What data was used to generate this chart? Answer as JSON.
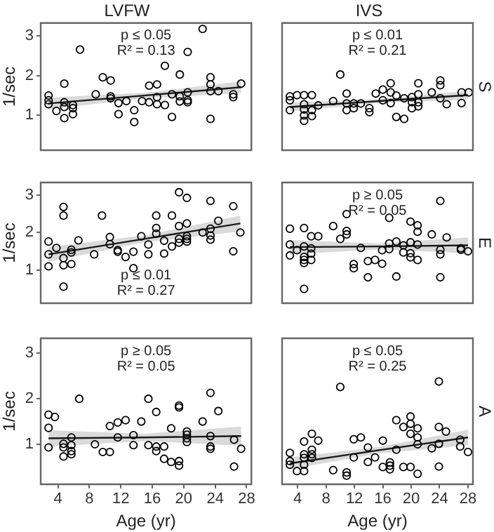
{
  "chart_data": [
    {
      "type": "scatter",
      "title": "LVFW",
      "ylabel": "1/sec",
      "annotations": [
        "p ≤ 0.05",
        "R² = 0.13"
      ],
      "xlim": [
        1.8,
        28.6
      ],
      "ylim": [
        0.12,
        3.33
      ],
      "xticks": [
        4,
        8,
        12,
        16,
        20,
        24,
        28
      ],
      "yticks": [
        1,
        2,
        3
      ],
      "tick_labels": "y",
      "legend": false,
      "series": [
        {
          "type": "scatter",
          "marker": "circle",
          "color": "#000000",
          "x": [
            2.8,
            2.8,
            2.8,
            3.8,
            4.8,
            4.8,
            4.8,
            4.8,
            5.9,
            5.9,
            5.9,
            6.8,
            8.8,
            9.7,
            10.7,
            10.7,
            10.7,
            11.7,
            11.7,
            12.7,
            13.7,
            13.7,
            14.7,
            15.6,
            15.6,
            16.6,
            16.6,
            16.6,
            17.6,
            17.6,
            18.5,
            18.5,
            19.5,
            19.5,
            19.5,
            20.5,
            20.5,
            20.5,
            20.5,
            22.4,
            23.4,
            23.4,
            23.4,
            23.4,
            24.4,
            26.3,
            26.3,
            27.3
          ],
          "values": [
            1.5,
            1.38,
            1.28,
            1.11,
            1.8,
            1.33,
            1.21,
            0.93,
            1.26,
            1.18,
            1.03,
            2.66,
            1.53,
            1.96,
            1.88,
            1.48,
            1.43,
            1.31,
            1.03,
            1.36,
            1.13,
            0.83,
            1.36,
            1.75,
            1.33,
            1.78,
            1.46,
            1.28,
            2.25,
            1.26,
            1.53,
            0.96,
            2.03,
            1.48,
            1.35,
            2.6,
            1.58,
            1.38,
            1.33,
            3.18,
            1.96,
            1.78,
            1.61,
            0.91,
            1.61,
            1.53,
            1.46,
            1.8
          ]
        },
        {
          "type": "line",
          "color": "#1a1a1a",
          "x": [
            2.8,
            15,
            27.3
          ],
          "values": [
            1.3,
            1.5,
            1.71
          ],
          "lower": [
            1.15,
            1.43,
            1.56
          ],
          "upper": [
            1.45,
            1.57,
            1.86
          ]
        }
      ]
    },
    {
      "type": "scatter",
      "title": "IVS",
      "y2label": "S",
      "annotations": [
        "p ≤ 0.01",
        "R² = 0.21"
      ],
      "xlim": [
        1.8,
        28.7
      ],
      "ylim": [
        0.12,
        3.33
      ],
      "xticks": [
        4,
        8,
        12,
        16,
        20,
        24,
        28
      ],
      "yticks": [
        1,
        2,
        3
      ],
      "tick_labels": false,
      "legend": false,
      "series": [
        {
          "type": "scatter",
          "marker": "circle",
          "color": "#000000",
          "x": [
            2.9,
            2.9,
            2.9,
            3.9,
            4.9,
            4.9,
            4.9,
            4.9,
            4.9,
            6.0,
            6.0,
            6.0,
            6.9,
            9.0,
            10.0,
            10.9,
            10.9,
            10.9,
            11.9,
            11.9,
            12.9,
            14.1,
            14.1,
            15.0,
            16.0,
            16.0,
            17.1,
            17.1,
            17.1,
            17.9,
            17.9,
            19.0,
            19.0,
            20.1,
            20.1,
            20.1,
            21.0,
            21.0,
            21.0,
            21.0,
            22.9,
            24.1,
            24.1,
            24.1,
            25.0,
            27.1,
            27.1,
            28.1
          ],
          "values": [
            1.48,
            1.38,
            1.13,
            1.51,
            1.51,
            1.28,
            1.15,
            1.0,
            0.86,
            1.51,
            1.13,
            0.98,
            1.25,
            1.36,
            2.03,
            1.55,
            1.3,
            1.13,
            1.3,
            1.18,
            1.3,
            1.18,
            1.08,
            1.55,
            1.65,
            1.38,
            1.81,
            1.58,
            1.31,
            1.5,
            0.96,
            1.43,
            0.91,
            1.46,
            1.33,
            1.18,
            1.81,
            1.53,
            1.33,
            1.23,
            1.58,
            1.88,
            1.76,
            1.43,
            1.28,
            1.58,
            1.31,
            1.58
          ]
        },
        {
          "type": "line",
          "color": "#1a1a1a",
          "x": [
            2.9,
            15.5,
            28
          ],
          "values": [
            1.21,
            1.36,
            1.51
          ],
          "lower": [
            1.1,
            1.31,
            1.4
          ],
          "upper": [
            1.32,
            1.41,
            1.62
          ]
        }
      ]
    },
    {
      "type": "scatter",
      "ylabel": "1/sec",
      "annotations": [
        "p ≤ 0.01",
        "R² = 0.27"
      ],
      "xlim": [
        1.8,
        28.6
      ],
      "ylim": [
        0.12,
        3.33
      ],
      "xticks": [
        4,
        8,
        12,
        16,
        20,
        24,
        28
      ],
      "yticks": [
        1,
        2,
        3
      ],
      "tick_labels": "y",
      "legend": false,
      "series": [
        {
          "type": "scatter",
          "marker": "circle",
          "color": "#000000",
          "x": [
            2.8,
            2.8,
            2.8,
            3.8,
            4.7,
            4.7,
            4.7,
            4.7,
            4.7,
            5.7,
            5.7,
            5.7,
            6.6,
            8.6,
            9.6,
            10.6,
            10.6,
            11.6,
            11.6,
            12.6,
            13.6,
            13.6,
            14.6,
            15.5,
            15.5,
            16.5,
            16.5,
            16.5,
            17.5,
            17.5,
            18.5,
            18.5,
            19.4,
            19.4,
            19.4,
            19.4,
            20.4,
            20.4,
            20.4,
            20.4,
            20.4,
            22.4,
            23.4,
            23.4,
            23.4,
            23.4,
            24.4,
            26.3,
            26.3,
            27.2
          ],
          "values": [
            1.76,
            1.42,
            1.1,
            1.59,
            2.68,
            2.45,
            1.32,
            1.13,
            0.56,
            1.54,
            1.47,
            1.16,
            1.79,
            1.42,
            2.45,
            1.88,
            1.69,
            1.53,
            1.49,
            1.35,
            1.49,
            1.05,
            1.9,
            1.68,
            1.42,
            2.45,
            2.12,
            1.97,
            1.78,
            1.44,
            2.45,
            1.63,
            3.07,
            2.17,
            1.83,
            1.73,
            2.92,
            2.24,
            1.9,
            1.83,
            1.76,
            2.0,
            2.84,
            2.1,
            1.92,
            1.81,
            2.31,
            2.7,
            1.5,
            2.0
          ]
        },
        {
          "type": "line",
          "color": "#1a1a1a",
          "x": [
            2.8,
            15,
            27.2
          ],
          "values": [
            1.42,
            1.83,
            2.24
          ],
          "lower": [
            1.22,
            1.74,
            2.03
          ],
          "upper": [
            1.62,
            1.92,
            2.45
          ]
        }
      ]
    },
    {
      "type": "scatter",
      "y2label": "E",
      "annotations": [
        "p ≥ 0.05",
        "R² = 0.05"
      ],
      "xlim": [
        1.8,
        28.7
      ],
      "ylim": [
        0.12,
        3.33
      ],
      "xticks": [
        4,
        8,
        12,
        16,
        20,
        24,
        28
      ],
      "yticks": [
        1,
        2,
        3
      ],
      "tick_labels": false,
      "legend": false,
      "series": [
        {
          "type": "scatter",
          "marker": "circle",
          "color": "#000000",
          "x": [
            2.9,
            2.9,
            2.9,
            3.9,
            4.9,
            4.9,
            4.9,
            4.9,
            4.9,
            4.9,
            5.9,
            5.9,
            5.9,
            5.9,
            6.9,
            9.0,
            10.0,
            10.9,
            10.9,
            10.9,
            11.9,
            11.9,
            12.9,
            13.9,
            13.9,
            14.9,
            15.9,
            15.9,
            16.9,
            16.9,
            16.9,
            17.9,
            17.9,
            18.9,
            18.9,
            19.9,
            19.9,
            19.9,
            19.9,
            20.9,
            20.9,
            20.9,
            20.9,
            22.9,
            24.1,
            24.1,
            24.1,
            24.1,
            25.0,
            27.0,
            27.0,
            28.0
          ],
          "values": [
            2.1,
            1.68,
            1.39,
            1.53,
            2.12,
            1.63,
            1.35,
            1.27,
            1.19,
            0.5,
            1.9,
            1.58,
            1.44,
            1.27,
            1.9,
            2.17,
            1.83,
            2.49,
            2.04,
            1.95,
            1.16,
            1.05,
            1.59,
            1.24,
            0.81,
            1.27,
            1.53,
            1.17,
            2.39,
            1.71,
            1.56,
            1.76,
            0.83,
            1.66,
            1.47,
            2.29,
            1.74,
            1.45,
            1.34,
            2.19,
            2.02,
            1.68,
            1.27,
            1.95,
            2.84,
            1.54,
            1.42,
            0.81,
            1.87,
            1.58,
            1.54,
            1.5
          ]
        },
        {
          "type": "line",
          "color": "#1a1a1a",
          "x": [
            2.9,
            15.5,
            28
          ],
          "values": [
            1.61,
            1.63,
            1.66
          ],
          "lower": [
            1.42,
            1.55,
            1.45
          ],
          "upper": [
            1.8,
            1.71,
            1.87
          ]
        }
      ]
    },
    {
      "type": "scatter",
      "ylabel": "1/sec",
      "xlabel": "Age (yr)",
      "annotations": [
        "p ≥ 0.05",
        "R² = 0.05"
      ],
      "xlim": [
        1.8,
        28.6
      ],
      "ylim": [
        0.12,
        3.33
      ],
      "xticks": [
        4,
        8,
        12,
        16,
        20,
        24,
        28
      ],
      "yticks": [
        1,
        2,
        3
      ],
      "legend": false,
      "series": [
        {
          "type": "scatter",
          "marker": "circle",
          "color": "#000000",
          "x": [
            2.8,
            2.8,
            2.8,
            3.6,
            4.7,
            4.7,
            4.7,
            5.7,
            5.7,
            5.7,
            5.7,
            6.7,
            8.7,
            9.7,
            10.6,
            10.6,
            11.6,
            11.6,
            12.6,
            13.6,
            13.6,
            14.6,
            15.5,
            15.5,
            16.5,
            16.5,
            16.5,
            17.5,
            17.5,
            18.4,
            18.4,
            19.4,
            19.4,
            19.4,
            19.4,
            20.4,
            20.4,
            20.4,
            20.4,
            22.4,
            23.4,
            23.4,
            23.4,
            23.4,
            24.4,
            26.4,
            26.4,
            27.3
          ],
          "values": [
            1.65,
            1.36,
            0.93,
            1.6,
            1.01,
            0.93,
            0.73,
            1.15,
            0.98,
            0.85,
            0.78,
            2.0,
            1.0,
            0.83,
            1.4,
            0.83,
            1.48,
            1.15,
            1.53,
            1.2,
            0.98,
            1.5,
            2.0,
            0.98,
            1.71,
            0.95,
            0.85,
            0.95,
            0.68,
            1.35,
            0.61,
            1.85,
            1.81,
            0.63,
            0.53,
            1.28,
            1.21,
            1.13,
            1.05,
            1.5,
            2.13,
            1.18,
            0.95,
            0.9,
            1.73,
            1.1,
            0.51,
            0.9
          ]
        },
        {
          "type": "line",
          "color": "#1a1a1a",
          "x": [
            2.8,
            15,
            27.3
          ],
          "values": [
            1.13,
            1.15,
            1.18
          ],
          "lower": [
            0.95,
            1.07,
            0.97
          ],
          "upper": [
            1.31,
            1.23,
            1.39
          ]
        }
      ]
    },
    {
      "type": "scatter",
      "xlabel": "Age (yr)",
      "y2label": "A",
      "annotations": [
        "p ≤ 0.05",
        "R² = 0.25"
      ],
      "xlim": [
        1.8,
        28.7
      ],
      "ylim": [
        0.12,
        3.33
      ],
      "xticks": [
        4,
        8,
        12,
        16,
        20,
        24,
        28
      ],
      "yticks": [
        1,
        2,
        3
      ],
      "tick_labels": "x",
      "legend": false,
      "series": [
        {
          "type": "scatter",
          "marker": "circle",
          "color": "#000000",
          "x": [
            2.9,
            2.9,
            2.9,
            3.9,
            4.9,
            4.9,
            4.9,
            4.9,
            4.9,
            6.0,
            6.0,
            6.0,
            6.0,
            6.9,
            9.0,
            10.0,
            10.9,
            10.9,
            11.9,
            11.9,
            12.9,
            13.9,
            13.9,
            14.9,
            16.0,
            16.0,
            17.0,
            17.0,
            17.0,
            17.9,
            17.9,
            18.9,
            18.9,
            19.9,
            19.9,
            19.9,
            19.9,
            20.9,
            20.9,
            20.9,
            20.9,
            22.9,
            23.9,
            23.9,
            23.9,
            23.9,
            24.9,
            26.9,
            26.9,
            28.0
          ],
          "values": [
            0.81,
            0.63,
            0.55,
            0.41,
            1.06,
            0.78,
            0.7,
            0.55,
            0.41,
            1.23,
            0.88,
            0.78,
            0.7,
            1.08,
            0.43,
            2.26,
            0.38,
            0.31,
            1.11,
            0.71,
            1.15,
            0.93,
            0.61,
            0.71,
            1.08,
            0.5,
            0.6,
            0.53,
            0.45,
            1.53,
            0.88,
            1.38,
            0.5,
            1.61,
            1.45,
            1.23,
            0.5,
            1.35,
            1.15,
            1.0,
            0.35,
            0.91,
            2.38,
            1.38,
            1.01,
            0.51,
            1.28,
            1.1,
            0.95,
            0.83
          ]
        },
        {
          "type": "line",
          "color": "#1a1a1a",
          "x": [
            2.9,
            15.5,
            28
          ],
          "values": [
            0.58,
            0.87,
            1.15
          ],
          "lower": [
            0.45,
            0.8,
            0.98
          ],
          "upper": [
            0.71,
            0.94,
            1.32
          ]
        }
      ]
    }
  ]
}
